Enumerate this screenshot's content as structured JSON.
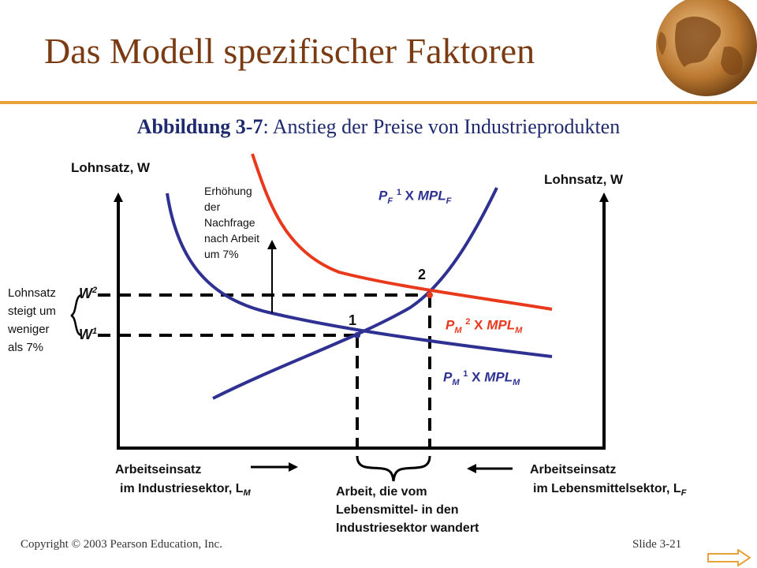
{
  "slide": {
    "title": "Das Modell spezifischer Faktoren",
    "figure_label": "Abbildung 3-7",
    "figure_caption": ": Anstieg der Preise von Industrieprodukten",
    "copyright": "Copyright © 2003 Pearson Education, Inc.",
    "slide_number": "Slide 3-21"
  },
  "diagram": {
    "left_axis_label": "Lohnsatz, W",
    "right_axis_label": "Lohnsatz, W",
    "demand_increase_note": [
      "Erhöhung",
      "der",
      "Nachfrage",
      "nach Arbeit",
      "um 7%"
    ],
    "wage_note": [
      "Lohnsatz",
      "steigt um",
      "weniger",
      "als 7%"
    ],
    "w2": {
      "base": "W",
      "sup": "2"
    },
    "w1": {
      "base": "W",
      "sup": "1"
    },
    "point_1": "1",
    "point_2": "2",
    "curve_pf1": {
      "p": "P",
      "p_sub": "F",
      "num": "1",
      "x": "X",
      "mpl": "MPL",
      "mpl_sub": "F"
    },
    "curve_pm2": {
      "p": "P",
      "p_sub": "M",
      "num": "2",
      "x": "X",
      "mpl": "MPL",
      "mpl_sub": "M"
    },
    "curve_pm1": {
      "p": "P",
      "p_sub": "M",
      "num": "1",
      "x": "X",
      "mpl": "MPL",
      "mpl_sub": "M"
    },
    "labor_manuf_line1": "Arbeitseinsatz",
    "labor_manuf_line2": "im Industriesektor, L",
    "labor_manuf_sub": "M",
    "labor_food_line1": "Arbeitseinsatz",
    "labor_food_line2": "im Lebensmittelsektor, L",
    "labor_food_sub": "F",
    "shift_note": [
      "Arbeit, die vom",
      "Lebensmittel- in den",
      "Industriesektor wandert"
    ]
  },
  "colors": {
    "title": "#7a3b12",
    "rule": "#e8a23a",
    "subtitle": "#1f2a6e",
    "blue_curves": "#2e3192",
    "red_curve": "#e8391d"
  },
  "icons": [
    "globe-icon",
    "next-arrow-icon"
  ]
}
